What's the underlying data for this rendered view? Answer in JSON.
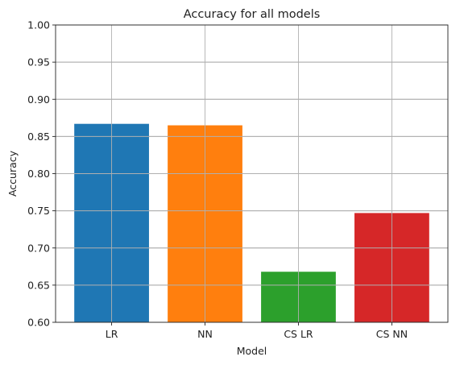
{
  "chart_data": {
    "type": "bar",
    "title": "Accuracy for all models",
    "xlabel": "Model",
    "ylabel": "Accuracy",
    "categories": [
      "LR",
      "NN",
      "CS LR",
      "CS NN"
    ],
    "values": [
      0.867,
      0.865,
      0.668,
      0.747
    ],
    "colors": [
      "#1f77b4",
      "#ff7f0e",
      "#2ca02c",
      "#d62728"
    ],
    "ylim": [
      0.6,
      1.0
    ],
    "yticks": [
      0.6,
      0.65,
      0.7,
      0.75,
      0.8,
      0.85,
      0.9,
      0.95,
      1.0
    ],
    "ytick_labels": [
      "0.60",
      "0.65",
      "0.70",
      "0.75",
      "0.80",
      "0.85",
      "0.90",
      "0.95",
      "1.00"
    ],
    "grid": true
  }
}
